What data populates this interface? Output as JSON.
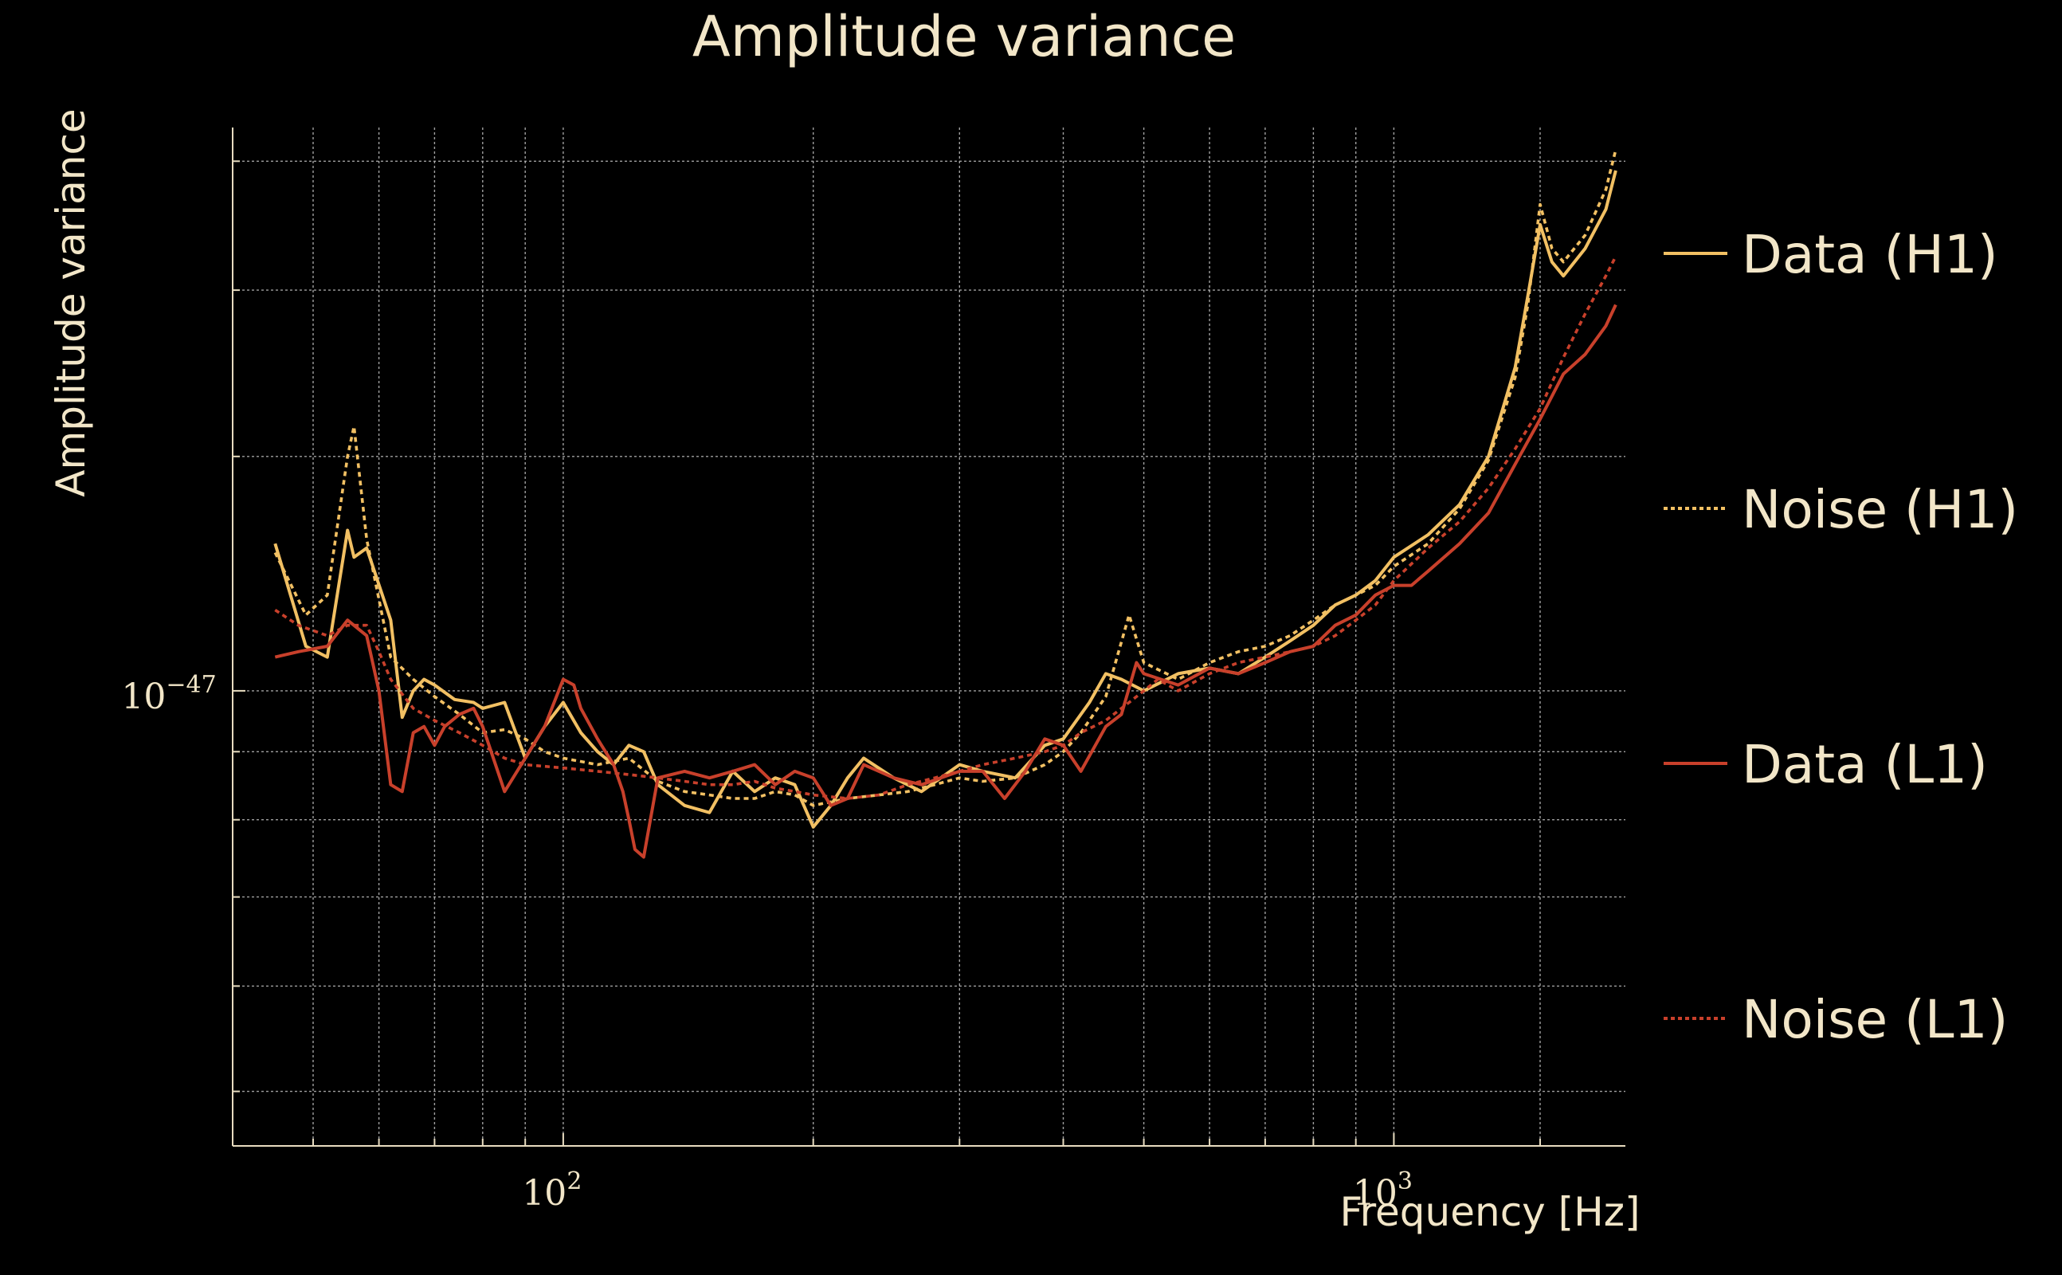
{
  "chart_data": {
    "type": "line",
    "title": "Amplitude variance",
    "xlabel": "Frequency [Hz]",
    "ylabel": "Amplitude variance",
    "xscale": "log",
    "yscale": "log",
    "xlim": [
      40,
      1900
    ],
    "ylim": [
      4.55e-48,
      2.65e-47
    ],
    "grid": true,
    "legend_position": "right",
    "x_tick_labels": [
      {
        "value": 100,
        "base": "10",
        "exp": "2"
      },
      {
        "value": 1000,
        "base": "10",
        "exp": "3"
      }
    ],
    "y_tick_labels": [
      {
        "value": 1e-47,
        "base": "10",
        "exp": "−47"
      }
    ],
    "x_grid": [
      50,
      60,
      70,
      80,
      90,
      100,
      200,
      300,
      400,
      500,
      600,
      700,
      800,
      900,
      1000,
      1500
    ],
    "y_grid": [
      5e-48,
      6e-48,
      7e-48,
      8e-48,
      9e-48,
      1e-47,
      1.5e-47,
      2e-47,
      2.5e-47
    ],
    "series": [
      {
        "name": "Data (H1)",
        "color": "#f2c063",
        "style": "solid",
        "points": [
          [
            45,
            1.29e-47
          ],
          [
            49,
            1.08e-47
          ],
          [
            52,
            1.06e-47
          ],
          [
            55,
            1.32e-47
          ],
          [
            56,
            1.26e-47
          ],
          [
            58,
            1.28e-47
          ],
          [
            62,
            1.13e-47
          ],
          [
            64,
            9.55e-48
          ],
          [
            66,
            1e-47
          ],
          [
            68,
            1.02e-47
          ],
          [
            70,
            1.01e-47
          ],
          [
            74,
            9.85e-48
          ],
          [
            78,
            9.8e-48
          ],
          [
            80,
            9.7e-48
          ],
          [
            85,
            9.8e-48
          ],
          [
            90,
            8.9e-48
          ],
          [
            95,
            9.4e-48
          ],
          [
            100,
            9.8e-48
          ],
          [
            105,
            9.3e-48
          ],
          [
            110,
            9e-48
          ],
          [
            115,
            8.8e-48
          ],
          [
            120,
            9.1e-48
          ],
          [
            125,
            9e-48
          ],
          [
            130,
            8.5e-48
          ],
          [
            140,
            8.2e-48
          ],
          [
            150,
            8.1e-48
          ],
          [
            160,
            8.7e-48
          ],
          [
            170,
            8.4e-48
          ],
          [
            180,
            8.6e-48
          ],
          [
            190,
            8.5e-48
          ],
          [
            200,
            7.9e-48
          ],
          [
            210,
            8.2e-48
          ],
          [
            220,
            8.6e-48
          ],
          [
            230,
            8.9e-48
          ],
          [
            250,
            8.6e-48
          ],
          [
            270,
            8.4e-48
          ],
          [
            300,
            8.8e-48
          ],
          [
            320,
            8.7e-48
          ],
          [
            350,
            8.6e-48
          ],
          [
            380,
            9.1e-48
          ],
          [
            400,
            9.2e-48
          ],
          [
            430,
            9.8e-48
          ],
          [
            450,
            1.03e-47
          ],
          [
            470,
            1.02e-47
          ],
          [
            500,
            1e-47
          ],
          [
            550,
            1.03e-47
          ],
          [
            600,
            1.04e-47
          ],
          [
            650,
            1.03e-47
          ],
          [
            700,
            1.06e-47
          ],
          [
            750,
            1.09e-47
          ],
          [
            800,
            1.12e-47
          ],
          [
            850,
            1.16e-47
          ],
          [
            900,
            1.18e-47
          ],
          [
            950,
            1.21e-47
          ],
          [
            1000,
            1.26e-47
          ],
          [
            1100,
            1.31e-47
          ],
          [
            1200,
            1.38e-47
          ],
          [
            1300,
            1.5e-47
          ],
          [
            1400,
            1.75e-47
          ],
          [
            1450,
            1.98e-47
          ],
          [
            1500,
            2.24e-47
          ],
          [
            1550,
            2.1e-47
          ],
          [
            1600,
            2.05e-47
          ],
          [
            1700,
            2.15e-47
          ],
          [
            1800,
            2.3e-47
          ],
          [
            1850,
            2.46e-47
          ]
        ]
      },
      {
        "name": "Noise (H1)",
        "color": "#f2c063",
        "style": "dotted",
        "points": [
          [
            45,
            1.27e-47
          ],
          [
            49,
            1.14e-47
          ],
          [
            52,
            1.18e-47
          ],
          [
            55,
            1.5e-47
          ],
          [
            56,
            1.58e-47
          ],
          [
            58,
            1.3e-47
          ],
          [
            62,
            1.06e-47
          ],
          [
            66,
            1.02e-47
          ],
          [
            70,
            9.9e-48
          ],
          [
            75,
            9.6e-48
          ],
          [
            80,
            9.3e-48
          ],
          [
            85,
            9.35e-48
          ],
          [
            90,
            9.2e-48
          ],
          [
            95,
            9e-48
          ],
          [
            100,
            8.9e-48
          ],
          [
            110,
            8.8e-48
          ],
          [
            120,
            8.9e-48
          ],
          [
            130,
            8.55e-48
          ],
          [
            140,
            8.4e-48
          ],
          [
            150,
            8.35e-48
          ],
          [
            160,
            8.3e-48
          ],
          [
            170,
            8.3e-48
          ],
          [
            180,
            8.4e-48
          ],
          [
            190,
            8.35e-48
          ],
          [
            200,
            8.2e-48
          ],
          [
            220,
            8.3e-48
          ],
          [
            240,
            8.35e-48
          ],
          [
            260,
            8.4e-48
          ],
          [
            280,
            8.5e-48
          ],
          [
            300,
            8.6e-48
          ],
          [
            320,
            8.55e-48
          ],
          [
            350,
            8.6e-48
          ],
          [
            380,
            8.8e-48
          ],
          [
            400,
            9e-48
          ],
          [
            420,
            9.3e-48
          ],
          [
            450,
            9.9e-48
          ],
          [
            480,
            1.14e-47
          ],
          [
            500,
            1.05e-47
          ],
          [
            550,
            1.02e-47
          ],
          [
            600,
            1.05e-47
          ],
          [
            650,
            1.07e-47
          ],
          [
            700,
            1.08e-47
          ],
          [
            750,
            1.1e-47
          ],
          [
            800,
            1.13e-47
          ],
          [
            850,
            1.16e-47
          ],
          [
            900,
            1.18e-47
          ],
          [
            950,
            1.2e-47
          ],
          [
            1000,
            1.24e-47
          ],
          [
            1100,
            1.29e-47
          ],
          [
            1200,
            1.37e-47
          ],
          [
            1300,
            1.49e-47
          ],
          [
            1400,
            1.72e-47
          ],
          [
            1450,
            1.95e-47
          ],
          [
            1500,
            2.32e-47
          ],
          [
            1550,
            2.15e-47
          ],
          [
            1600,
            2.1e-47
          ],
          [
            1700,
            2.2e-47
          ],
          [
            1800,
            2.38e-47
          ],
          [
            1850,
            2.55e-47
          ]
        ]
      },
      {
        "name": "Data (L1)",
        "color": "#c8402b",
        "style": "solid",
        "points": [
          [
            45,
            1.06e-47
          ],
          [
            48,
            1.07e-47
          ],
          [
            52,
            1.08e-47
          ],
          [
            55,
            1.13e-47
          ],
          [
            58,
            1.1e-47
          ],
          [
            60,
            1e-47
          ],
          [
            62,
            8.5e-48
          ],
          [
            64,
            8.4e-48
          ],
          [
            66,
            9.3e-48
          ],
          [
            68,
            9.4e-48
          ],
          [
            70,
            9.1e-48
          ],
          [
            72,
            9.4e-48
          ],
          [
            75,
            9.6e-48
          ],
          [
            78,
            9.7e-48
          ],
          [
            80,
            9.4e-48
          ],
          [
            85,
            8.4e-48
          ],
          [
            90,
            8.9e-48
          ],
          [
            95,
            9.4e-48
          ],
          [
            100,
            1.02e-47
          ],
          [
            103,
            1.01e-47
          ],
          [
            105,
            9.7e-48
          ],
          [
            110,
            9.2e-48
          ],
          [
            115,
            8.8e-48
          ],
          [
            118,
            8.4e-48
          ],
          [
            120,
            8e-48
          ],
          [
            122,
            7.6e-48
          ],
          [
            125,
            7.5e-48
          ],
          [
            130,
            8.6e-48
          ],
          [
            140,
            8.7e-48
          ],
          [
            150,
            8.6e-48
          ],
          [
            160,
            8.7e-48
          ],
          [
            170,
            8.8e-48
          ],
          [
            180,
            8.5e-48
          ],
          [
            190,
            8.7e-48
          ],
          [
            200,
            8.6e-48
          ],
          [
            210,
            8.2e-48
          ],
          [
            220,
            8.3e-48
          ],
          [
            230,
            8.8e-48
          ],
          [
            240,
            8.7e-48
          ],
          [
            250,
            8.6e-48
          ],
          [
            270,
            8.5e-48
          ],
          [
            300,
            8.7e-48
          ],
          [
            320,
            8.7e-48
          ],
          [
            340,
            8.3e-48
          ],
          [
            360,
            8.7e-48
          ],
          [
            380,
            9.2e-48
          ],
          [
            400,
            9.1e-48
          ],
          [
            420,
            8.7e-48
          ],
          [
            450,
            9.4e-48
          ],
          [
            470,
            9.6e-48
          ],
          [
            490,
            1.05e-47
          ],
          [
            500,
            1.03e-47
          ],
          [
            550,
            1.01e-47
          ],
          [
            600,
            1.04e-47
          ],
          [
            650,
            1.03e-47
          ],
          [
            700,
            1.05e-47
          ],
          [
            750,
            1.07e-47
          ],
          [
            800,
            1.08e-47
          ],
          [
            850,
            1.12e-47
          ],
          [
            900,
            1.14e-47
          ],
          [
            950,
            1.18e-47
          ],
          [
            1000,
            1.2e-47
          ],
          [
            1050,
            1.2e-47
          ],
          [
            1100,
            1.23e-47
          ],
          [
            1200,
            1.29e-47
          ],
          [
            1300,
            1.36e-47
          ],
          [
            1400,
            1.48e-47
          ],
          [
            1500,
            1.6e-47
          ],
          [
            1600,
            1.73e-47
          ],
          [
            1700,
            1.79e-47
          ],
          [
            1800,
            1.88e-47
          ],
          [
            1850,
            1.95e-47
          ]
        ]
      },
      {
        "name": "Noise (L1)",
        "color": "#c8402b",
        "style": "dotted",
        "points": [
          [
            45,
            1.15e-47
          ],
          [
            48,
            1.12e-47
          ],
          [
            52,
            1.1e-47
          ],
          [
            55,
            1.12e-47
          ],
          [
            58,
            1.12e-47
          ],
          [
            60,
            1.07e-47
          ],
          [
            62,
            1.02e-47
          ],
          [
            66,
            9.7e-48
          ],
          [
            70,
            9.5e-48
          ],
          [
            75,
            9.3e-48
          ],
          [
            80,
            9.1e-48
          ],
          [
            85,
            8.9e-48
          ],
          [
            90,
            8.8e-48
          ],
          [
            100,
            8.75e-48
          ],
          [
            110,
            8.7e-48
          ],
          [
            120,
            8.65e-48
          ],
          [
            130,
            8.6e-48
          ],
          [
            140,
            8.55e-48
          ],
          [
            150,
            8.5e-48
          ],
          [
            160,
            8.5e-48
          ],
          [
            170,
            8.55e-48
          ],
          [
            180,
            8.45e-48
          ],
          [
            190,
            8.4e-48
          ],
          [
            200,
            8.35e-48
          ],
          [
            220,
            8.3e-48
          ],
          [
            240,
            8.35e-48
          ],
          [
            260,
            8.5e-48
          ],
          [
            280,
            8.6e-48
          ],
          [
            300,
            8.7e-48
          ],
          [
            320,
            8.8e-48
          ],
          [
            350,
            8.9e-48
          ],
          [
            380,
            9e-48
          ],
          [
            400,
            9.1e-48
          ],
          [
            420,
            9.3e-48
          ],
          [
            450,
            9.5e-48
          ],
          [
            480,
            9.8e-48
          ],
          [
            500,
            1e-47
          ],
          [
            520,
            1.02e-47
          ],
          [
            550,
            1e-47
          ],
          [
            600,
            1.03e-47
          ],
          [
            650,
            1.05e-47
          ],
          [
            700,
            1.06e-47
          ],
          [
            750,
            1.07e-47
          ],
          [
            800,
            1.08e-47
          ],
          [
            850,
            1.1e-47
          ],
          [
            900,
            1.13e-47
          ],
          [
            950,
            1.16e-47
          ],
          [
            1000,
            1.21e-47
          ],
          [
            1100,
            1.28e-47
          ],
          [
            1200,
            1.34e-47
          ],
          [
            1300,
            1.42e-47
          ],
          [
            1400,
            1.52e-47
          ],
          [
            1500,
            1.63e-47
          ],
          [
            1600,
            1.78e-47
          ],
          [
            1700,
            1.92e-47
          ],
          [
            1800,
            2.05e-47
          ],
          [
            1850,
            2.12e-47
          ]
        ]
      }
    ]
  }
}
